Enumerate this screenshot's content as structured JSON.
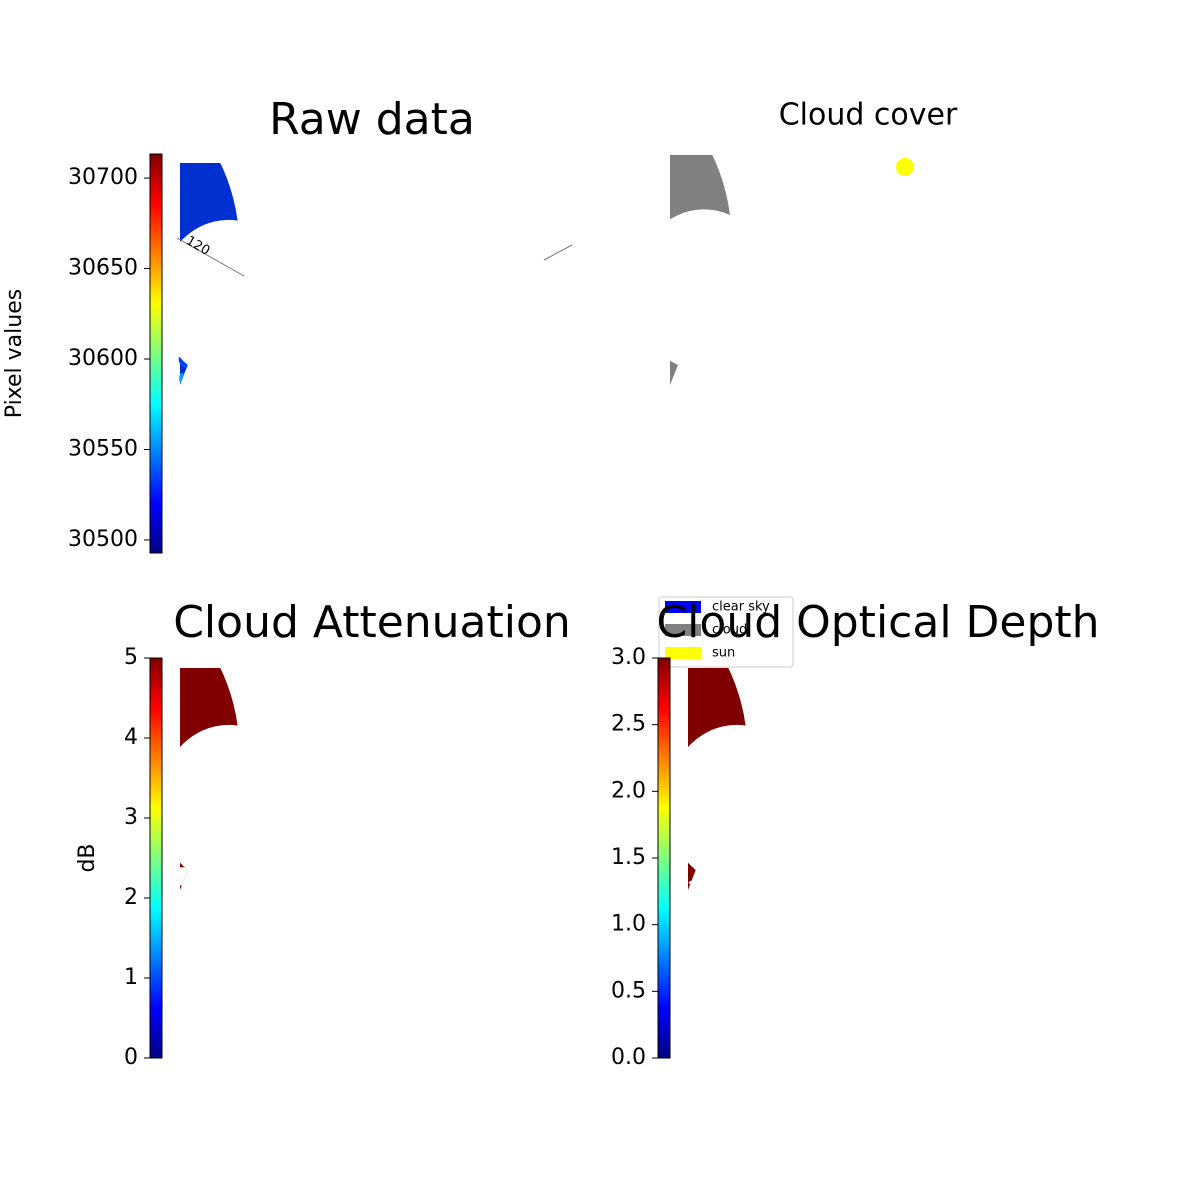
{
  "chart_data": [
    {
      "type": "image",
      "title": "Raw data",
      "colorbar_label": "Pixel values",
      "annotation": "120",
      "ylim": [
        30492.8,
        30713.3
      ],
      "yticks": [
        30500,
        30550,
        30600,
        30650,
        30700
      ]
    },
    {
      "type": "image",
      "title": "Cloud cover",
      "series": [
        {
          "name": "clear sky",
          "color": "#0000ff"
        },
        {
          "name": "cloud",
          "color": "#808080"
        },
        {
          "name": "sun",
          "color": "#ffff00"
        }
      ]
    },
    {
      "type": "image",
      "title": "Cloud Attenuation",
      "colorbar_label": "dB",
      "ylim": [
        0,
        5
      ],
      "yticks": [
        0,
        1,
        2,
        3,
        4,
        5
      ]
    },
    {
      "type": "image",
      "title": "Cloud Optical Depth",
      "ylim": [
        0,
        3
      ],
      "yticks": [
        {
          "value": 0,
          "label": "0.0"
        },
        {
          "value": 0.5,
          "label": "0.5"
        },
        {
          "value": 1,
          "label": "1.0"
        },
        {
          "value": 1.5,
          "label": "1.5"
        },
        {
          "value": 2,
          "label": "2.0"
        },
        {
          "value": 2.5,
          "label": "2.5"
        },
        {
          "value": 3,
          "label": "3.0"
        }
      ]
    }
  ]
}
